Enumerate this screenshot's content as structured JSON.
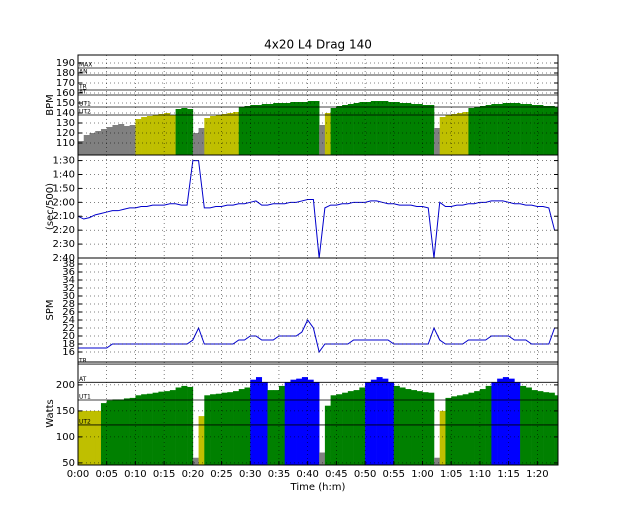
{
  "chart_data": [
    {
      "type": "area",
      "title": "4x20 L4 Drag 140",
      "ylabel": "BPM",
      "values": [
        112,
        118,
        120,
        122,
        124,
        126,
        128,
        129,
        127,
        128,
        134,
        136,
        137,
        138,
        139,
        140,
        138,
        144,
        145,
        144,
        120,
        125,
        135,
        137,
        138,
        139,
        140,
        141,
        146,
        147,
        148,
        148,
        149,
        149,
        150,
        150,
        150,
        151,
        151,
        151,
        152,
        152,
        128,
        140,
        145,
        147,
        148,
        149,
        150,
        151,
        151,
        152,
        152,
        152,
        151,
        151,
        150,
        150,
        149,
        149,
        148,
        148,
        125,
        136,
        138,
        139,
        140,
        141,
        145,
        146,
        147,
        148,
        149,
        149,
        150,
        150,
        150,
        149,
        149,
        148,
        148,
        147,
        147,
        146
      ],
      "fill_bands": [
        {
          "min": 0,
          "color": "#808080"
        },
        {
          "min": 130,
          "color": "#bfbf00"
        },
        {
          "min": 142,
          "color": "#008000"
        }
      ],
      "zones": [
        {
          "label": "MAX",
          "value": 185
        },
        {
          "label": "AN",
          "value": 178
        },
        {
          "label": "TR",
          "value": 163
        },
        {
          "label": "AT",
          "value": 158
        },
        {
          "label": "UT1",
          "value": 146
        },
        {
          "label": "UT2",
          "value": 138
        }
      ],
      "ylim": [
        98,
        198
      ],
      "yticks": [
        110,
        120,
        130,
        140,
        150,
        160,
        170,
        180,
        190
      ],
      "grid": true
    },
    {
      "type": "line",
      "ylabel": "(sec/500)",
      "color": "#0000cc",
      "values": [
        130,
        132,
        131,
        129,
        128,
        127,
        126,
        126,
        125,
        124,
        124,
        123,
        123,
        122,
        122,
        122,
        121,
        121,
        122,
        122,
        90,
        90,
        124,
        124,
        123,
        123,
        122,
        122,
        121,
        121,
        120,
        119,
        122,
        122,
        121,
        121,
        121,
        120,
        120,
        119,
        118,
        118,
        160,
        124,
        122,
        122,
        121,
        121,
        120,
        120,
        120,
        119,
        119,
        120,
        121,
        121,
        122,
        122,
        122,
        123,
        123,
        124,
        160,
        120,
        123,
        123,
        122,
        122,
        121,
        121,
        120,
        120,
        119,
        119,
        119,
        120,
        121,
        121,
        122,
        122,
        123,
        123,
        124,
        140
      ],
      "ylim": [
        160,
        86
      ],
      "yticks": [
        {
          "value": 90,
          "label": "1:30"
        },
        {
          "value": 100,
          "label": "1:40"
        },
        {
          "value": 110,
          "label": "1:50"
        },
        {
          "value": 120,
          "label": "2:00"
        },
        {
          "value": 130,
          "label": "2:10"
        },
        {
          "value": 140,
          "label": "2:20"
        },
        {
          "value": 150,
          "label": "2:30"
        },
        {
          "value": 160,
          "label": "2:40"
        }
      ],
      "grid": true
    },
    {
      "type": "line",
      "ylabel": "SPM",
      "color": "#0000cc",
      "values": [
        17,
        17,
        17,
        17,
        17,
        17,
        18,
        18,
        18,
        18,
        18,
        18,
        18,
        18,
        18,
        18,
        18,
        18,
        18,
        18,
        19,
        22,
        18,
        18,
        18,
        18,
        18,
        18,
        19,
        19,
        20,
        20,
        19,
        19,
        19,
        20,
        20,
        20,
        20,
        21,
        24,
        22,
        16,
        18,
        18,
        18,
        18,
        18,
        19,
        19,
        19,
        19,
        19,
        19,
        19,
        18,
        18,
        18,
        18,
        18,
        18,
        18,
        22,
        19,
        18,
        18,
        18,
        18,
        19,
        19,
        19,
        19,
        20,
        20,
        20,
        20,
        19,
        19,
        19,
        18,
        18,
        18,
        18,
        22
      ],
      "ylim": [
        13.5,
        39.5
      ],
      "yticks": [
        16,
        18,
        20,
        22,
        24,
        26,
        28,
        30,
        32,
        34,
        36,
        38
      ],
      "grid": true
    },
    {
      "type": "area",
      "ylabel": "Watts",
      "xlabel": "Time (h:m)",
      "x": [
        0,
        1,
        2,
        3,
        4,
        5,
        6,
        7,
        8,
        9,
        10,
        11,
        12,
        13,
        14,
        15,
        16,
        17,
        18,
        19,
        20,
        21,
        22,
        23,
        24,
        25,
        26,
        27,
        28,
        29,
        30,
        31,
        32,
        33,
        34,
        35,
        36,
        37,
        38,
        39,
        40,
        41,
        42,
        43,
        44,
        45,
        46,
        47,
        48,
        49,
        50,
        51,
        52,
        53,
        54,
        55,
        56,
        57,
        58,
        59,
        60,
        61,
        62,
        63,
        64,
        65,
        66,
        67,
        68,
        69,
        70,
        71,
        72,
        73,
        74,
        75,
        76,
        77,
        78,
        79,
        80,
        81,
        82,
        83
      ],
      "values": [
        150,
        150,
        150,
        150,
        165,
        170,
        172,
        172,
        174,
        175,
        180,
        182,
        183,
        185,
        187,
        188,
        190,
        195,
        198,
        196,
        60,
        140,
        180,
        182,
        183,
        185,
        186,
        188,
        192,
        195,
        210,
        215,
        205,
        190,
        190,
        198,
        205,
        210,
        212,
        215,
        210,
        205,
        70,
        160,
        180,
        182,
        185,
        188,
        190,
        195,
        205,
        210,
        215,
        212,
        205,
        198,
        195,
        192,
        190,
        188,
        186,
        185,
        60,
        150,
        175,
        178,
        180,
        182,
        185,
        188,
        192,
        198,
        205,
        212,
        215,
        212,
        205,
        198,
        195,
        190,
        188,
        186,
        185,
        180
      ],
      "fill_bands": [
        {
          "min": 0,
          "color": "#808080"
        },
        {
          "min": 100,
          "color": "#bfbf00"
        },
        {
          "min": 160,
          "color": "#008000"
        },
        {
          "min": 200,
          "color": "#0000ff"
        }
      ],
      "zones": [
        {
          "label": "TR",
          "value": 240
        },
        {
          "label": "AT",
          "value": 205
        },
        {
          "label": "UT1",
          "value": 171
        },
        {
          "label": "UT2",
          "value": 123
        }
      ],
      "ylim": [
        46,
        244
      ],
      "yticks": [
        50,
        100,
        150,
        200
      ],
      "xlim": [
        0,
        83.6
      ],
      "xticks": [
        {
          "value": 0,
          "label": "0:00"
        },
        {
          "value": 5,
          "label": "0:05"
        },
        {
          "value": 10,
          "label": "0:10"
        },
        {
          "value": 15,
          "label": "0:15"
        },
        {
          "value": 20,
          "label": "0:20"
        },
        {
          "value": 25,
          "label": "0:25"
        },
        {
          "value": 30,
          "label": "0:30"
        },
        {
          "value": 35,
          "label": "0:35"
        },
        {
          "value": 40,
          "label": "0:40"
        },
        {
          "value": 45,
          "label": "0:45"
        },
        {
          "value": 50,
          "label": "0:50"
        },
        {
          "value": 55,
          "label": "0:55"
        },
        {
          "value": 60,
          "label": "1:00"
        },
        {
          "value": 65,
          "label": "1:05"
        },
        {
          "value": 70,
          "label": "1:10"
        },
        {
          "value": 75,
          "label": "1:15"
        },
        {
          "value": 80,
          "label": "1:20"
        }
      ],
      "grid": true
    }
  ]
}
